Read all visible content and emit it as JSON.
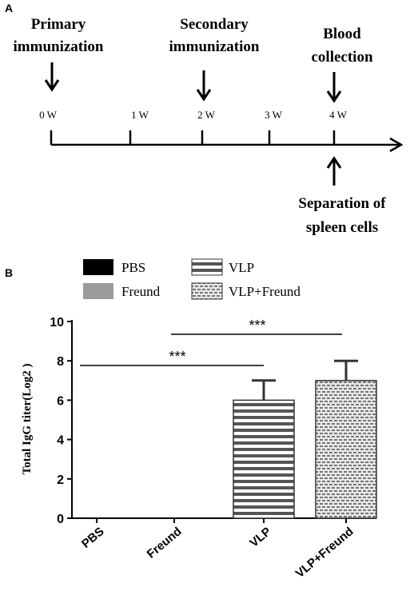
{
  "panel_a": {
    "label": "A",
    "events_top": [
      {
        "lines": [
          "Primary",
          "immunization"
        ]
      },
      {
        "lines": [
          "Secondary",
          "immunization"
        ]
      },
      {
        "lines": [
          "Blood",
          "collection"
        ]
      }
    ],
    "event_bottom": {
      "lines": [
        "Separation of",
        "spleen cells"
      ]
    },
    "ticks": [
      "0 W",
      "1 W",
      "2 W",
      "3 W",
      "4 W"
    ]
  },
  "panel_b": {
    "label": "B",
    "legend": [
      "PBS",
      "VLP",
      "Freund",
      "VLP+Freund"
    ],
    "significance": [
      "***",
      "***"
    ]
  },
  "chart_data": {
    "type": "bar",
    "categories": [
      "PBS",
      "Freund",
      "VLP",
      "VLP+Freund"
    ],
    "values": [
      0,
      0,
      6,
      7
    ],
    "errors": [
      0,
      0,
      1,
      1
    ],
    "ylabel": "Total IgG titer(Log2 )",
    "xlabel": "",
    "ylim": [
      0,
      10
    ],
    "yticks": [
      0,
      2,
      4,
      6,
      8,
      10
    ],
    "grid": false,
    "legend_position": "top",
    "colors": {
      "PBS": "#000000",
      "Freund": "#9a9a9a",
      "VLP": "#555555",
      "VLP+Freund": "#cfcfcf"
    }
  }
}
